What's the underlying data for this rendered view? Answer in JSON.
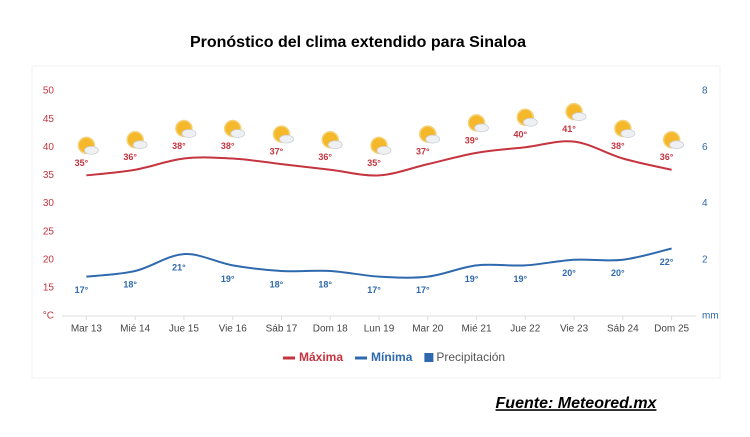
{
  "chart_data": {
    "type": "line",
    "title": "Pronóstico del clima extendido para Sinaloa",
    "categories": [
      "Mar 13",
      "Mié 14",
      "Jue 15",
      "Vie 16",
      "Sáb 17",
      "Dom 18",
      "Lun 19",
      "Mar 20",
      "Mié 21",
      "Jue 22",
      "Vie 23",
      "Sáb 24",
      "Dom 25"
    ],
    "series": [
      {
        "name": "Máxima",
        "color": "#c5343f",
        "values": [
          35,
          36,
          38,
          38,
          37,
          36,
          35,
          37,
          39,
          40,
          41,
          38,
          36
        ],
        "value_labels": [
          "35°",
          "36°",
          "38°",
          "38°",
          "37°",
          "36°",
          "35°",
          "37°",
          "39°",
          "40°",
          "41°",
          "38°",
          "36°"
        ]
      },
      {
        "name": "Mínima",
        "color": "#2f69ad",
        "values": [
          17,
          18,
          21,
          19,
          18,
          18,
          17,
          17,
          19,
          19,
          20,
          20,
          22
        ],
        "value_labels": [
          "17°",
          "18°",
          "21°",
          "19°",
          "18°",
          "18°",
          "17°",
          "17°",
          "19°",
          "19°",
          "20°",
          "20°",
          "22°"
        ]
      },
      {
        "name": "Precipitación",
        "color": "#2f69ad",
        "axis": "y2",
        "values": [
          0,
          0,
          0,
          0,
          0,
          0,
          0,
          0,
          0,
          0,
          0,
          0,
          0
        ]
      }
    ],
    "ylim": [
      10,
      50
    ],
    "yticks": [
      {
        "value": 10,
        "label": "°C"
      },
      15,
      20,
      25,
      30,
      35,
      40,
      45,
      50
    ],
    "y2lim": [
      0,
      8
    ],
    "y2ticks": [
      {
        "value": 0,
        "label": "mm"
      },
      2,
      4,
      6,
      8
    ],
    "grid": false,
    "source": "Fuente: Meteored.mx"
  }
}
